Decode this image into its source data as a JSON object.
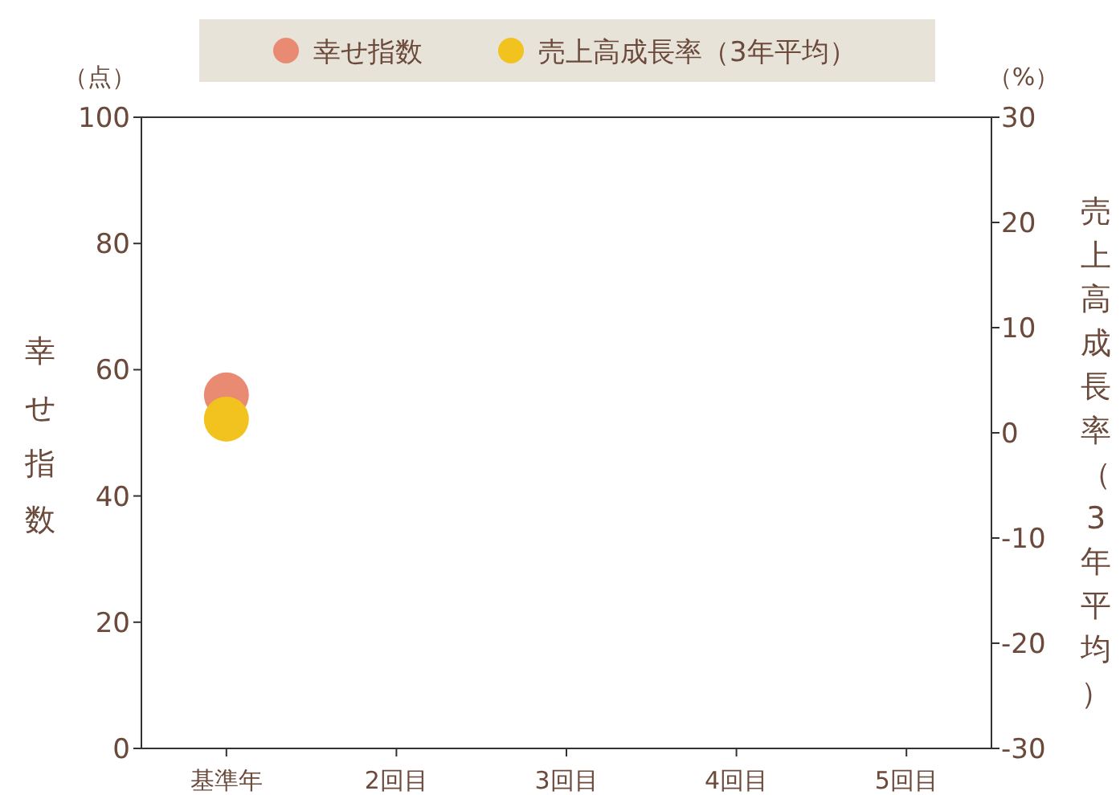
{
  "chart_data": {
    "type": "scatter",
    "categories": [
      "基準年",
      "2回目",
      "3回目",
      "4回目",
      "5回目"
    ],
    "ylabel": "幸せ指数",
    "y2label": "売上高成長率（3年平均）",
    "annotations": [
      "（点）",
      "（%）"
    ],
    "ylim": [
      0,
      100
    ],
    "yticks": [
      0,
      20,
      40,
      60,
      80,
      100
    ],
    "y2lim": [
      -30,
      30
    ],
    "y2ticks": [
      -30,
      -20,
      -10,
      0,
      10,
      20,
      30
    ],
    "legend": "top",
    "marker": "circle",
    "series": [
      {
        "name": "幸せ指数",
        "color": "#e98a72",
        "values": [
          56,
          null,
          null,
          null,
          null
        ]
      },
      {
        "name": "売上高成長率（3年平均）",
        "color": "#f2c21e",
        "axis": "y2",
        "values": [
          1.3,
          null,
          null,
          null,
          null
        ]
      }
    ]
  }
}
